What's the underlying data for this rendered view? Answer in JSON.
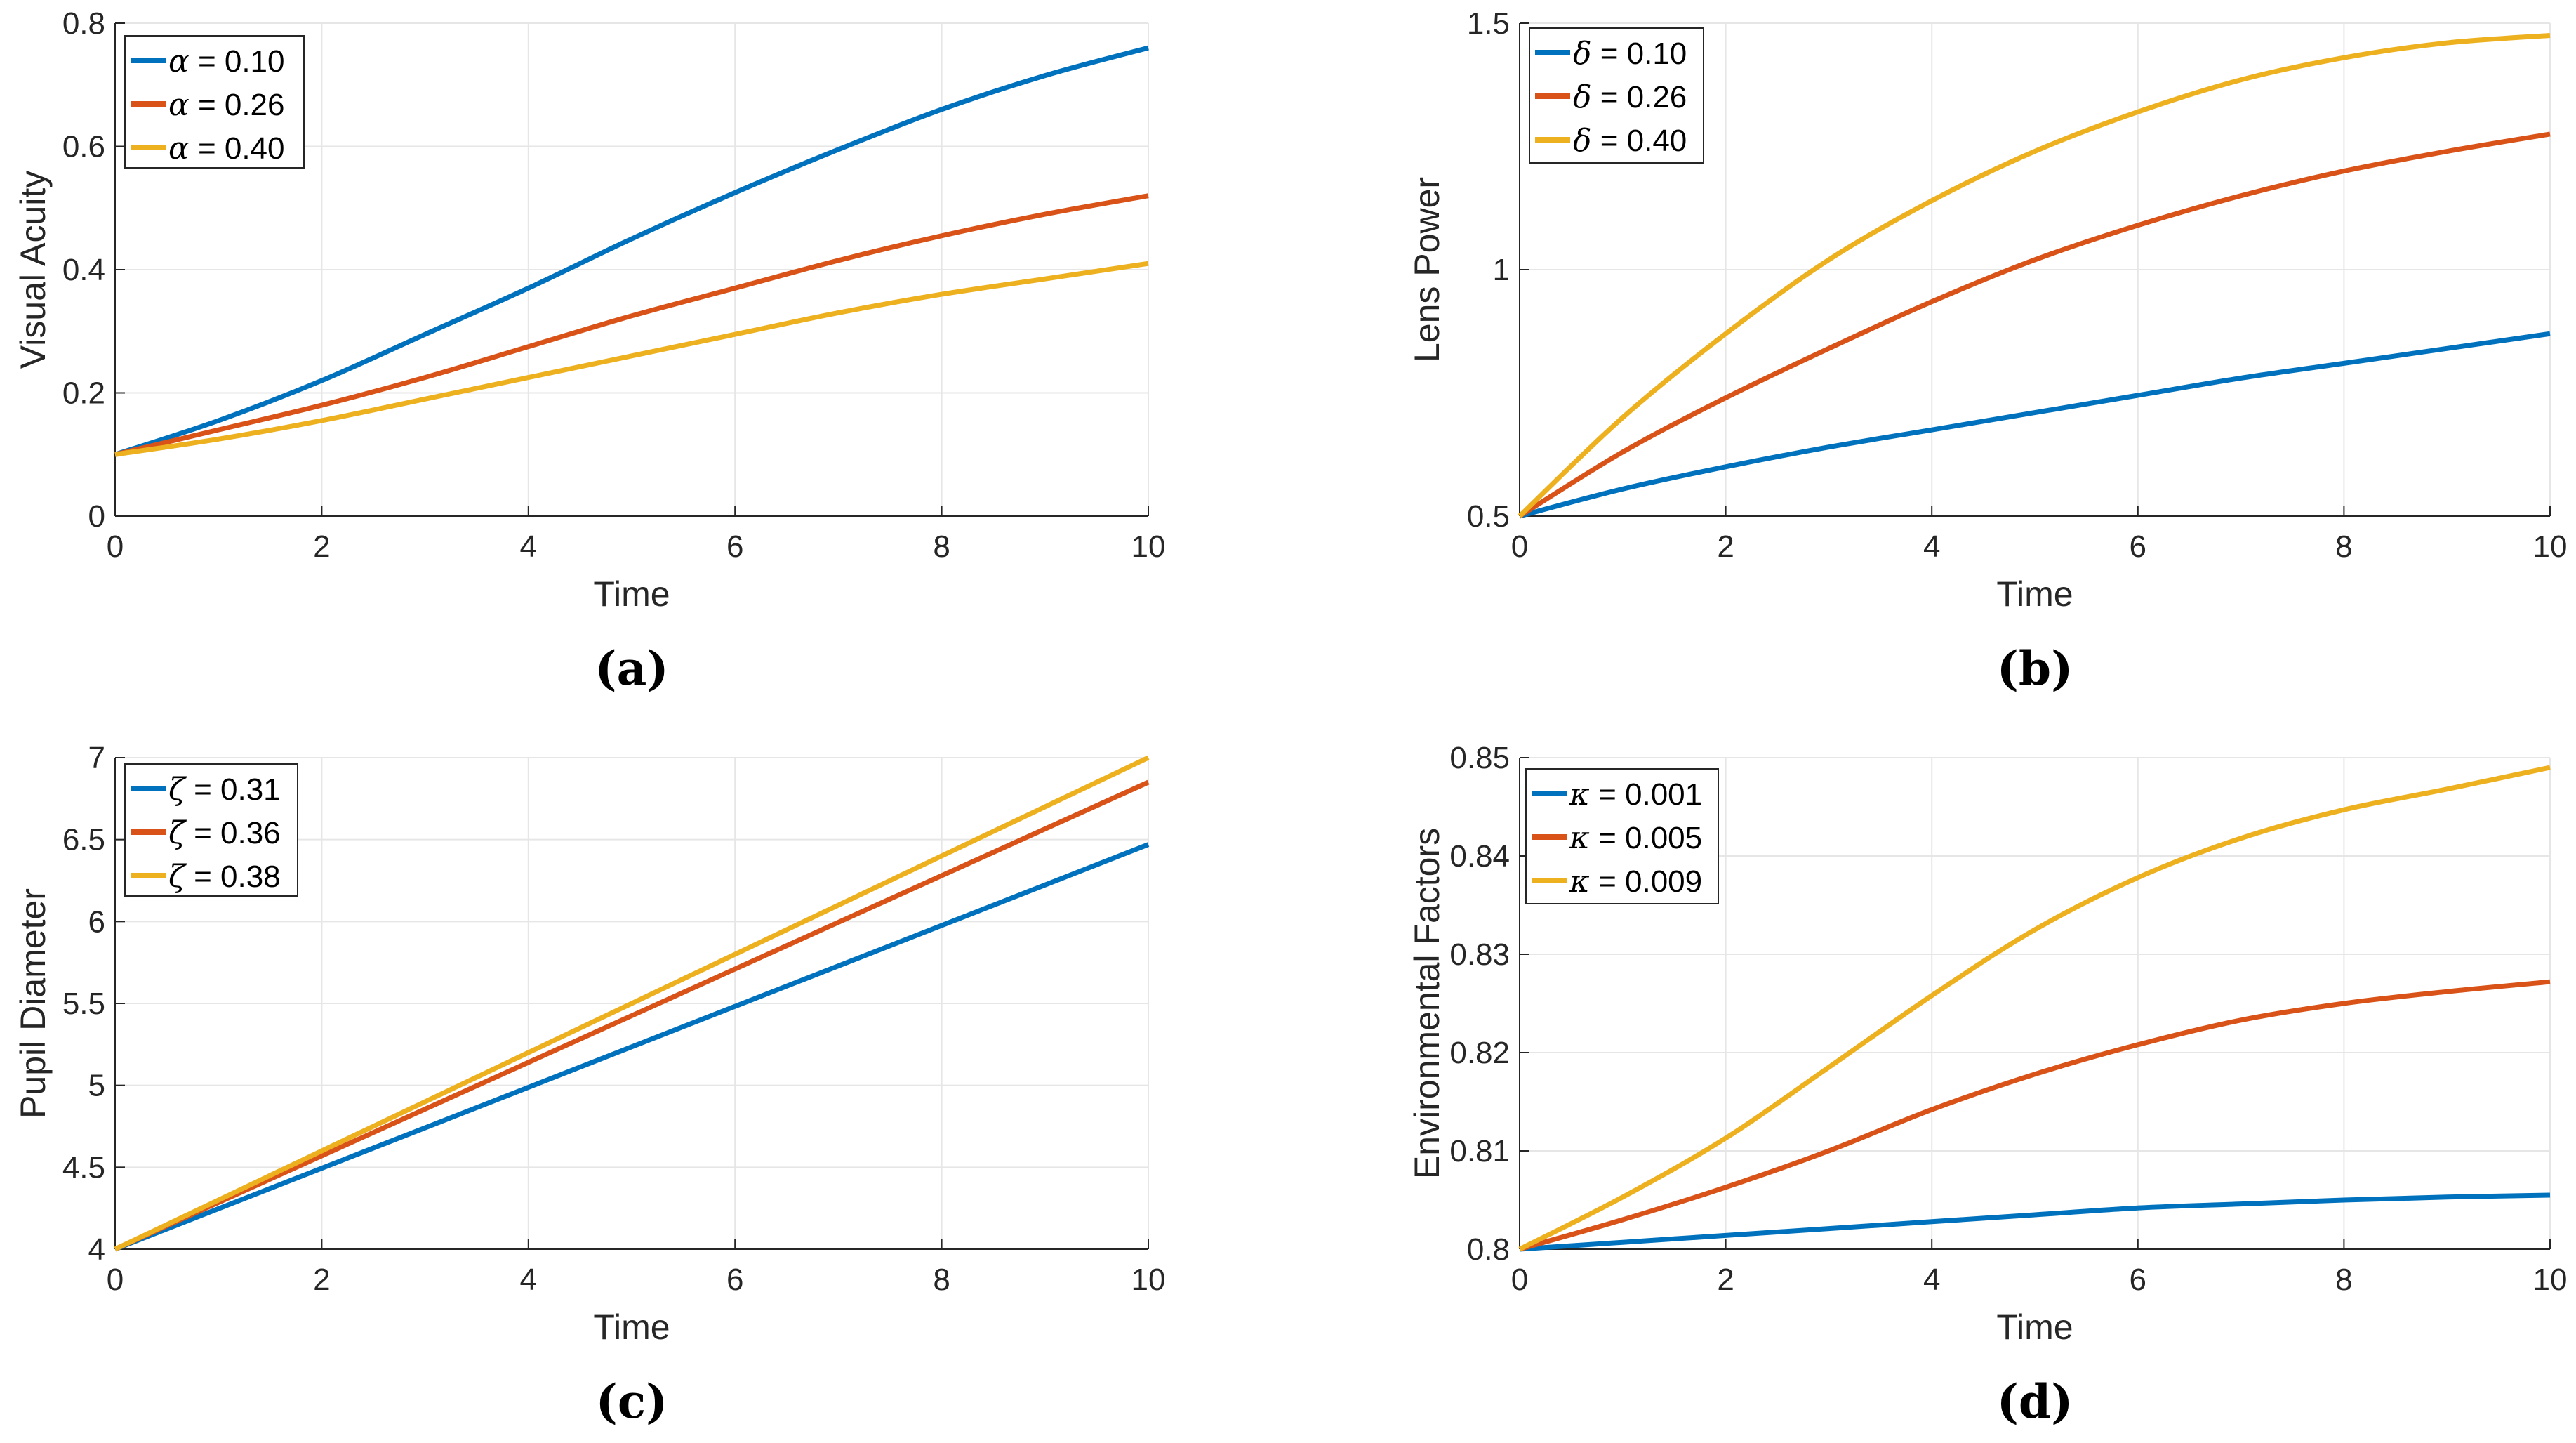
{
  "chart_data": [
    {
      "type": "line",
      "caption": "(a)",
      "xlabel": "Time",
      "ylabel": "Visual Acuity",
      "xlim": [
        0,
        10
      ],
      "ylim": [
        0,
        0.8
      ],
      "xticks": [
        "0",
        "2",
        "4",
        "6",
        "8",
        "10"
      ],
      "yticks": [
        "0",
        "0.2",
        "0.4",
        "0.6",
        "0.8"
      ],
      "grid": true,
      "legend_position": "top-left",
      "param_symbol": "α",
      "x": [
        0,
        1,
        2,
        3,
        4,
        5,
        6,
        7,
        8,
        9,
        10
      ],
      "series": [
        {
          "name": "= 0.10",
          "color": "#0072BD",
          "values": [
            0.1,
            0.155,
            0.22,
            0.295,
            0.37,
            0.45,
            0.525,
            0.595,
            0.66,
            0.715,
            0.76
          ]
        },
        {
          "name": "= 0.26",
          "color": "#D95319",
          "values": [
            0.1,
            0.14,
            0.18,
            0.225,
            0.275,
            0.325,
            0.37,
            0.415,
            0.455,
            0.49,
            0.52
          ]
        },
        {
          "name": "= 0.40",
          "color": "#EDB120",
          "values": [
            0.1,
            0.125,
            0.155,
            0.19,
            0.225,
            0.26,
            0.295,
            0.33,
            0.36,
            0.385,
            0.41
          ]
        }
      ]
    },
    {
      "type": "line",
      "caption": "(b)",
      "xlabel": "Time",
      "ylabel": "Lens Power",
      "xlim": [
        0,
        10
      ],
      "ylim": [
        0.5,
        1.5
      ],
      "xticks": [
        "0",
        "2",
        "4",
        "6",
        "8",
        "10"
      ],
      "yticks": [
        "0.5",
        "1",
        "1.5"
      ],
      "grid": true,
      "legend_position": "top-left",
      "param_symbol": "δ",
      "x": [
        0,
        1,
        2,
        3,
        4,
        5,
        6,
        7,
        8,
        9,
        10
      ],
      "series": [
        {
          "name": "= 0.10",
          "color": "#0072BD",
          "values": [
            0.5,
            0.555,
            0.6,
            0.64,
            0.675,
            0.71,
            0.745,
            0.78,
            0.81,
            0.84,
            0.87
          ]
        },
        {
          "name": "= 0.26",
          "color": "#D95319",
          "values": [
            0.5,
            0.63,
            0.74,
            0.84,
            0.935,
            1.02,
            1.09,
            1.15,
            1.2,
            1.24,
            1.275
          ]
        },
        {
          "name": "= 0.40",
          "color": "#EDB120",
          "values": [
            0.5,
            0.7,
            0.87,
            1.02,
            1.14,
            1.24,
            1.32,
            1.385,
            1.43,
            1.46,
            1.475
          ]
        }
      ]
    },
    {
      "type": "line",
      "caption": "(c)",
      "xlabel": "Time",
      "ylabel": "Pupil Diameter",
      "xlim": [
        0,
        10
      ],
      "ylim": [
        4,
        7
      ],
      "xticks": [
        "0",
        "2",
        "4",
        "6",
        "8",
        "10"
      ],
      "yticks": [
        "4",
        "4.5",
        "5",
        "5.5",
        "6",
        "6.5",
        "7"
      ],
      "grid": true,
      "legend_position": "top-left",
      "param_symbol": "ζ",
      "x": [
        0,
        10
      ],
      "series": [
        {
          "name": "= 0.31",
          "color": "#0072BD",
          "values": [
            4.0,
            6.47
          ]
        },
        {
          "name": "= 0.36",
          "color": "#D95319",
          "values": [
            4.0,
            6.85
          ]
        },
        {
          "name": "= 0.38",
          "color": "#EDB120",
          "values": [
            4.0,
            7.0
          ]
        }
      ]
    },
    {
      "type": "line",
      "caption": "(d)",
      "xlabel": "Time",
      "ylabel": "Environmental Factors",
      "xlim": [
        0,
        10
      ],
      "ylim": [
        0.8,
        0.85
      ],
      "xticks": [
        "0",
        "2",
        "4",
        "6",
        "8",
        "10"
      ],
      "yticks": [
        "0.8",
        "0.81",
        "0.82",
        "0.83",
        "0.84",
        "0.85"
      ],
      "grid": true,
      "legend_position": "top-left",
      "param_symbol": "κ",
      "x": [
        0,
        1,
        2,
        3,
        4,
        5,
        6,
        7,
        8,
        9,
        10
      ],
      "series": [
        {
          "name": "= 0.001",
          "color": "#0072BD",
          "values": [
            0.8,
            0.8007,
            0.8014,
            0.8021,
            0.8028,
            0.8035,
            0.8042,
            0.8046,
            0.805,
            0.8053,
            0.8055
          ]
        },
        {
          "name": "= 0.005",
          "color": "#D95319",
          "values": [
            0.8,
            0.803,
            0.8063,
            0.81,
            0.8142,
            0.8178,
            0.8208,
            0.8233,
            0.825,
            0.8262,
            0.8272
          ]
        },
        {
          "name": "= 0.009",
          "color": "#EDB120",
          "values": [
            0.8,
            0.8053,
            0.8113,
            0.8185,
            0.8258,
            0.8325,
            0.8378,
            0.8418,
            0.8447,
            0.8468,
            0.849
          ]
        }
      ]
    }
  ]
}
